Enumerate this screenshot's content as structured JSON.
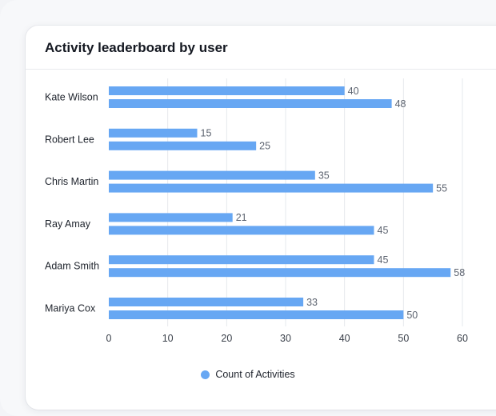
{
  "card": {
    "title": "Activity leaderboard by user"
  },
  "colors": {
    "bar": "#67a7f3",
    "grid": "#e6e8ec",
    "label": "#1d222b",
    "value_label": "#5d6470",
    "tick": "#3a404a"
  },
  "chart_data": {
    "type": "bar",
    "orientation": "horizontal",
    "title": "Activity leaderboard by user",
    "xlabel": "",
    "ylabel": "",
    "xlim": [
      0,
      60
    ],
    "x_ticks": [
      0,
      10,
      20,
      30,
      40,
      50,
      60
    ],
    "grid": true,
    "legend_position": "bottom-center",
    "categories": [
      "Kate Wilson",
      "Robert Lee",
      "Chris Martin",
      "Ray Amay",
      "Adam Smith",
      "Mariya Cox"
    ],
    "series": [
      {
        "name": "Count of Activities",
        "values": [
          40,
          15,
          35,
          21,
          45,
          33
        ]
      },
      {
        "name": "Count of Activities",
        "values": [
          48,
          25,
          55,
          45,
          58,
          50
        ]
      }
    ],
    "legend": [
      "Count of Activities"
    ]
  }
}
